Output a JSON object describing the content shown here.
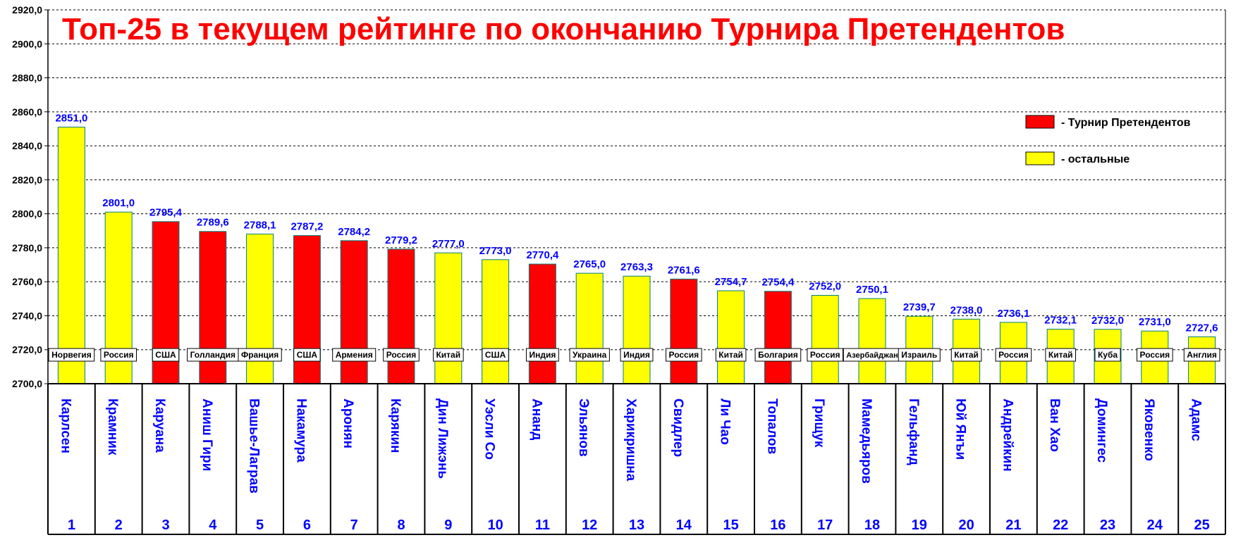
{
  "chart_data": {
    "type": "bar",
    "title": "Топ-25 в текущем рейтинге по окончанию Турнира Претендентов",
    "ylim": [
      2700,
      2920
    ],
    "ytick_step": 20,
    "ytick_labels": [
      "2700,0",
      "2720,0",
      "2740,0",
      "2760,0",
      "2780,0",
      "2800,0",
      "2820,0",
      "2840,0",
      "2860,0",
      "2880,0",
      "2900,0",
      "2920,0"
    ],
    "grid": true,
    "legend_position": "top-right",
    "legend": [
      {
        "key": "candidates",
        "label": "- Турнир Претендентов",
        "color": "#ff0000"
      },
      {
        "key": "others",
        "label": "- остальные",
        "color": "#ffff00"
      }
    ],
    "bars": [
      {
        "rank": "1",
        "name": "Карлсен",
        "country": "Норвегия",
        "value": 2851.0,
        "label": "2851,0",
        "group": "others"
      },
      {
        "rank": "2",
        "name": "Крамник",
        "country": "Россия",
        "value": 2801.0,
        "label": "2801,0",
        "group": "others"
      },
      {
        "rank": "3",
        "name": "Каруана",
        "country": "США",
        "value": 2795.4,
        "label": "2795,4",
        "group": "candidates"
      },
      {
        "rank": "4",
        "name": "Аниш Гири",
        "country": "Голландия",
        "value": 2789.6,
        "label": "2789,6",
        "group": "candidates"
      },
      {
        "rank": "5",
        "name": "Вашье-Лаграв",
        "country": "Франция",
        "value": 2788.1,
        "label": "2788,1",
        "group": "others"
      },
      {
        "rank": "6",
        "name": "Накамура",
        "country": "США",
        "value": 2787.2,
        "label": "2787,2",
        "group": "candidates"
      },
      {
        "rank": "7",
        "name": "Аронян",
        "country": "Армения",
        "value": 2784.2,
        "label": "2784,2",
        "group": "candidates"
      },
      {
        "rank": "8",
        "name": "Карякин",
        "country": "Россия",
        "value": 2779.2,
        "label": "2779,2",
        "group": "candidates"
      },
      {
        "rank": "9",
        "name": "Дин Лижэнь",
        "country": "Китай",
        "value": 2777.0,
        "label": "2777,0",
        "group": "others"
      },
      {
        "rank": "10",
        "name": "Уэсли Со",
        "country": "США",
        "value": 2773.0,
        "label": "2773,0",
        "group": "others"
      },
      {
        "rank": "11",
        "name": "Ананд",
        "country": "Индия",
        "value": 2770.4,
        "label": "2770,4",
        "group": "candidates"
      },
      {
        "rank": "12",
        "name": "Эльянов",
        "country": "Украина",
        "value": 2765.0,
        "label": "2765,0",
        "group": "others"
      },
      {
        "rank": "13",
        "name": "Харикришна",
        "country": "Индия",
        "value": 2763.3,
        "label": "2763,3",
        "group": "others"
      },
      {
        "rank": "14",
        "name": "Свидлер",
        "country": "Россия",
        "value": 2761.6,
        "label": "2761,6",
        "group": "candidates"
      },
      {
        "rank": "15",
        "name": "Ли Чао",
        "country": "Китай",
        "value": 2754.7,
        "label": "2754,7",
        "group": "others"
      },
      {
        "rank": "16",
        "name": "Топалов",
        "country": "Болгария",
        "value": 2754.4,
        "label": "2754,4",
        "group": "candidates"
      },
      {
        "rank": "17",
        "name": "Грищук",
        "country": "Россия",
        "value": 2752.0,
        "label": "2752,0",
        "group": "others"
      },
      {
        "rank": "18",
        "name": "Мамедьяров",
        "country": "Азербайджан",
        "value": 2750.1,
        "label": "2750,1",
        "group": "others"
      },
      {
        "rank": "19",
        "name": "Гельфанд",
        "country": "Израиль",
        "value": 2739.7,
        "label": "2739,7",
        "group": "others"
      },
      {
        "rank": "20",
        "name": "Юй Янъи",
        "country": "Китай",
        "value": 2738.0,
        "label": "2738,0",
        "group": "others"
      },
      {
        "rank": "21",
        "name": "Андрейкин",
        "country": "Россия",
        "value": 2736.1,
        "label": "2736,1",
        "group": "others"
      },
      {
        "rank": "22",
        "name": "Ван Хао",
        "country": "Китай",
        "value": 2732.1,
        "label": "2732,1",
        "group": "others"
      },
      {
        "rank": "23",
        "name": "Домингес",
        "country": "Куба",
        "value": 2732.0,
        "label": "2732,0",
        "group": "others"
      },
      {
        "rank": "24",
        "name": "Яковенко",
        "country": "Россия",
        "value": 2731.0,
        "label": "2731,0",
        "group": "others"
      },
      {
        "rank": "25",
        "name": "Адамс",
        "country": "Англия",
        "value": 2727.6,
        "label": "2727,6",
        "group": "others"
      }
    ]
  }
}
